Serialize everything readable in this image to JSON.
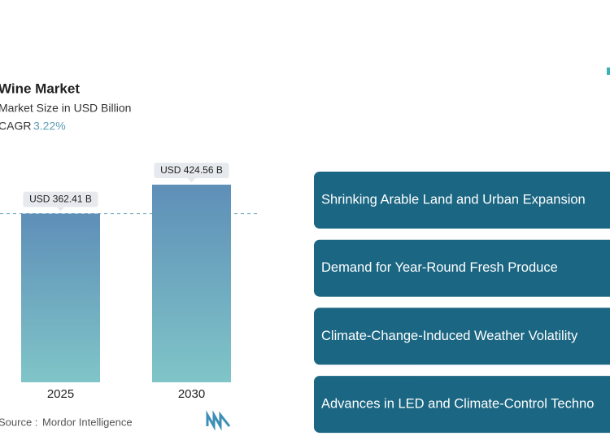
{
  "chart_data": {
    "type": "bar",
    "title": "Wine Market",
    "subtitle": "Market Size in USD Billion",
    "cagr_label": "CAGR",
    "cagr": "3.22%",
    "categories": [
      "2025",
      "2030"
    ],
    "values": [
      362.41,
      424.56
    ],
    "value_labels": [
      "USD 362.41 B",
      "USD 424.56 B"
    ],
    "source_label": "Source :",
    "source": "Mordor Intelligence"
  },
  "factors": [
    "Shrinking Arable Land and Urban Expansion",
    "Demand for Year-Round Fresh Produce",
    "Climate-Change-Induced Weather Volatility",
    "Advances in LED and Climate-Control Techno"
  ]
}
